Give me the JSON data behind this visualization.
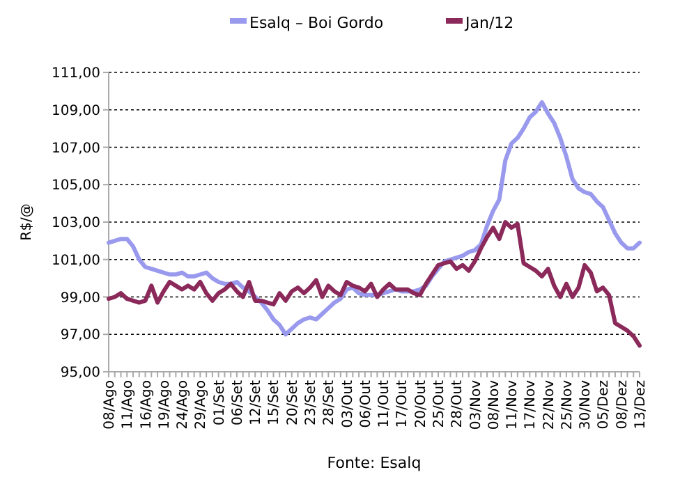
{
  "chart_data": {
    "type": "line",
    "ylabel": "R$/@",
    "annotations": [
      "Fonte: Esalq"
    ],
    "legend": "top",
    "grid": "y",
    "marker": "none",
    "line_style": "solid",
    "categories": [
      "08/Ago",
      null,
      null,
      "11/Ago",
      null,
      null,
      "16/Ago",
      null,
      null,
      "19/Ago",
      null,
      null,
      "24/Ago",
      null,
      null,
      "29/Ago",
      null,
      null,
      "01/Set",
      null,
      null,
      "06/Set",
      null,
      null,
      "12/Set",
      null,
      null,
      "15/Set",
      null,
      null,
      "20/Set",
      null,
      null,
      "23/Set",
      null,
      null,
      "28/Set",
      null,
      null,
      "03/Out",
      null,
      null,
      "06/Out",
      null,
      null,
      "11/Out",
      null,
      null,
      "17/Out",
      null,
      null,
      "20/Out",
      null,
      null,
      "25/Out",
      null,
      null,
      "28/Out",
      null,
      null,
      "03/Nov",
      null,
      null,
      "08/Nov",
      null,
      null,
      "11/Nov",
      null,
      null,
      "17/Nov",
      null,
      null,
      "22/Nov",
      null,
      null,
      "25/Nov",
      null,
      null,
      "30/Nov",
      null,
      null,
      "05/Dez",
      null,
      null,
      "08/Dez",
      null,
      null,
      "13/Dez"
    ],
    "ylim": [
      95,
      111
    ],
    "yticks": [
      {
        "value": 95,
        "label": "95,00"
      },
      {
        "value": 97,
        "label": "97,00"
      },
      {
        "value": 99,
        "label": "99,00"
      },
      {
        "value": 101,
        "label": "101,00"
      },
      {
        "value": 103,
        "label": "103,00"
      },
      {
        "value": 105,
        "label": "105,00"
      },
      {
        "value": 107,
        "label": "107,00"
      },
      {
        "value": 109,
        "label": "109,00"
      },
      {
        "value": 111,
        "label": "111,00"
      }
    ],
    "series": [
      {
        "name": "Esalq – Boi Gordo",
        "color": "#9999ee",
        "values": [
          101.9,
          102.0,
          102.1,
          102.1,
          101.7,
          101.0,
          100.6,
          100.5,
          100.4,
          100.3,
          100.2,
          100.2,
          100.3,
          100.1,
          100.1,
          100.2,
          100.3,
          100.0,
          99.8,
          99.7,
          99.7,
          99.8,
          99.5,
          99.3,
          99.0,
          98.7,
          98.3,
          97.8,
          97.5,
          97.0,
          97.3,
          97.6,
          97.8,
          97.9,
          97.8,
          98.1,
          98.4,
          98.7,
          98.9,
          99.4,
          99.5,
          99.2,
          99.1,
          99.1,
          99.1,
          99.2,
          99.3,
          99.4,
          99.3,
          99.3,
          99.3,
          99.4,
          99.6,
          100.1,
          100.5,
          100.9,
          101.0,
          101.1,
          101.2,
          101.4,
          101.5,
          101.8,
          102.8,
          103.6,
          104.2,
          106.3,
          107.2,
          107.5,
          108.0,
          108.6,
          108.9,
          109.4,
          108.8,
          108.3,
          107.5,
          106.5,
          105.3,
          104.8,
          104.6,
          104.5,
          104.1,
          103.8,
          103.1,
          102.4,
          101.9,
          101.6,
          101.6,
          101.9
        ]
      },
      {
        "name": "Jan/12",
        "color": "#8b2a5a",
        "values": [
          98.9,
          99.0,
          99.2,
          98.9,
          98.8,
          98.7,
          98.8,
          99.6,
          98.7,
          99.3,
          99.8,
          99.6,
          99.4,
          99.6,
          99.4,
          99.8,
          99.2,
          98.8,
          99.2,
          99.4,
          99.7,
          99.3,
          99.0,
          99.8,
          98.8,
          98.8,
          98.7,
          98.6,
          99.2,
          98.8,
          99.3,
          99.5,
          99.2,
          99.5,
          99.9,
          99.0,
          99.6,
          99.3,
          99.1,
          99.8,
          99.6,
          99.5,
          99.3,
          99.7,
          99.0,
          99.4,
          99.7,
          99.4,
          99.4,
          99.4,
          99.2,
          99.1,
          99.7,
          100.2,
          100.7,
          100.8,
          100.9,
          100.5,
          100.7,
          100.4,
          100.9,
          101.6,
          102.2,
          102.7,
          102.1,
          103.0,
          102.7,
          102.9,
          100.8,
          100.6,
          100.4,
          100.1,
          100.5,
          99.6,
          99.0,
          99.7,
          99.0,
          99.5,
          100.7,
          100.3,
          99.3,
          99.5,
          99.1,
          97.6,
          97.4,
          97.2,
          96.9,
          96.4
        ]
      }
    ]
  }
}
